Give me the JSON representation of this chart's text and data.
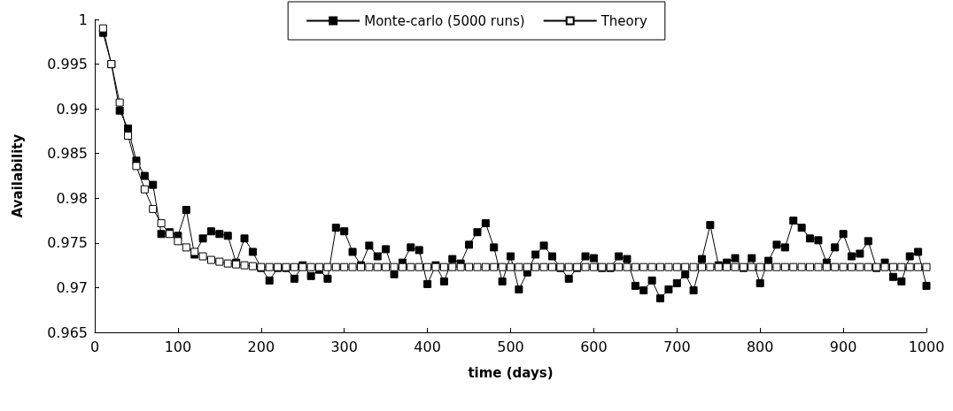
{
  "chart_data": {
    "type": "line",
    "xlabel": "time (days)",
    "ylabel": "Availability",
    "x": [
      10,
      20,
      30,
      40,
      50,
      60,
      70,
      80,
      90,
      100,
      110,
      120,
      130,
      140,
      150,
      160,
      170,
      180,
      190,
      200,
      210,
      220,
      230,
      240,
      250,
      260,
      270,
      280,
      290,
      300,
      310,
      320,
      330,
      340,
      350,
      360,
      370,
      380,
      390,
      400,
      410,
      420,
      430,
      440,
      450,
      460,
      470,
      480,
      490,
      500,
      510,
      520,
      530,
      540,
      550,
      560,
      570,
      580,
      590,
      600,
      610,
      620,
      630,
      640,
      650,
      660,
      670,
      680,
      690,
      700,
      710,
      720,
      730,
      740,
      750,
      760,
      770,
      780,
      790,
      800,
      810,
      820,
      830,
      840,
      850,
      860,
      870,
      880,
      890,
      900,
      910,
      920,
      930,
      940,
      950,
      960,
      970,
      980,
      990,
      1000
    ],
    "series": [
      {
        "name": "Monte-carlo (5000 runs)",
        "color": "#000000",
        "values": [
          0.9985,
          0.995,
          0.9898,
          0.9878,
          0.9842,
          0.9825,
          0.9815,
          0.976,
          0.9762,
          0.9758,
          0.9787,
          0.9737,
          0.9755,
          0.9763,
          0.976,
          0.9758,
          0.9728,
          0.9755,
          0.974,
          0.9722,
          0.9708,
          0.9722,
          0.9722,
          0.971,
          0.9725,
          0.9713,
          0.972,
          0.971,
          0.9767,
          0.9763,
          0.974,
          0.9725,
          0.9747,
          0.9735,
          0.9743,
          0.9715,
          0.9728,
          0.9745,
          0.9742,
          0.9704,
          0.9725,
          0.9707,
          0.9732,
          0.9727,
          0.9748,
          0.9762,
          0.9772,
          0.9745,
          0.9707,
          0.9735,
          0.9698,
          0.9717,
          0.9737,
          0.9747,
          0.9735,
          0.9722,
          0.971,
          0.9722,
          0.9735,
          0.9733,
          0.9722,
          0.9722,
          0.9735,
          0.9732,
          0.9702,
          0.9697,
          0.9708,
          0.9688,
          0.9698,
          0.9705,
          0.9715,
          0.9697,
          0.9732,
          0.977,
          0.9725,
          0.9728,
          0.9733,
          0.9722,
          0.9733,
          0.9705,
          0.973,
          0.9748,
          0.9745,
          0.9775,
          0.9767,
          0.9755,
          0.9753,
          0.9728,
          0.9745,
          0.976,
          0.9735,
          0.9738,
          0.9752,
          0.9722,
          0.9728,
          0.9712,
          0.9707,
          0.9735,
          0.974,
          0.9702
        ]
      },
      {
        "name": "Theory",
        "color": "#000000",
        "values": [
          0.999,
          0.995,
          0.9907,
          0.987,
          0.9836,
          0.981,
          0.9788,
          0.9772,
          0.976,
          0.9752,
          0.9745,
          0.974,
          0.9735,
          0.9731,
          0.9729,
          0.9727,
          0.9726,
          0.9725,
          0.9724,
          0.9723,
          0.9723,
          0.9723,
          0.9723,
          0.9723,
          0.9723,
          0.9723,
          0.9723,
          0.9723,
          0.9723,
          0.9723,
          0.9723,
          0.9723,
          0.9723,
          0.9723,
          0.9723,
          0.9723,
          0.9723,
          0.9723,
          0.9723,
          0.9723,
          0.9723,
          0.9723,
          0.9723,
          0.9723,
          0.9723,
          0.9723,
          0.9723,
          0.9723,
          0.9723,
          0.9723,
          0.9723,
          0.9723,
          0.9723,
          0.9723,
          0.9723,
          0.9723,
          0.9723,
          0.9723,
          0.9723,
          0.9723,
          0.9723,
          0.9723,
          0.9723,
          0.9723,
          0.9723,
          0.9723,
          0.9723,
          0.9723,
          0.9723,
          0.9723,
          0.9723,
          0.9723,
          0.9723,
          0.9723,
          0.9723,
          0.9723,
          0.9723,
          0.9723,
          0.9723,
          0.9723,
          0.9723,
          0.9723,
          0.9723,
          0.9723,
          0.9723,
          0.9723,
          0.9723,
          0.9723,
          0.9723,
          0.9723,
          0.9723,
          0.9723,
          0.9723,
          0.9723,
          0.9723,
          0.9723,
          0.9723,
          0.9723,
          0.9723,
          0.9723
        ]
      }
    ],
    "xlim": [
      0,
      1000
    ],
    "xticks": [
      0,
      100,
      200,
      300,
      400,
      500,
      600,
      700,
      800,
      900,
      1000
    ],
    "ylim": [
      0.965,
      1
    ],
    "yticks": [
      0.965,
      0.97,
      0.975,
      0.98,
      0.985,
      0.99,
      0.995,
      1
    ],
    "grid": false,
    "legend": "top",
    "marker": "square",
    "line_style": "solid"
  }
}
